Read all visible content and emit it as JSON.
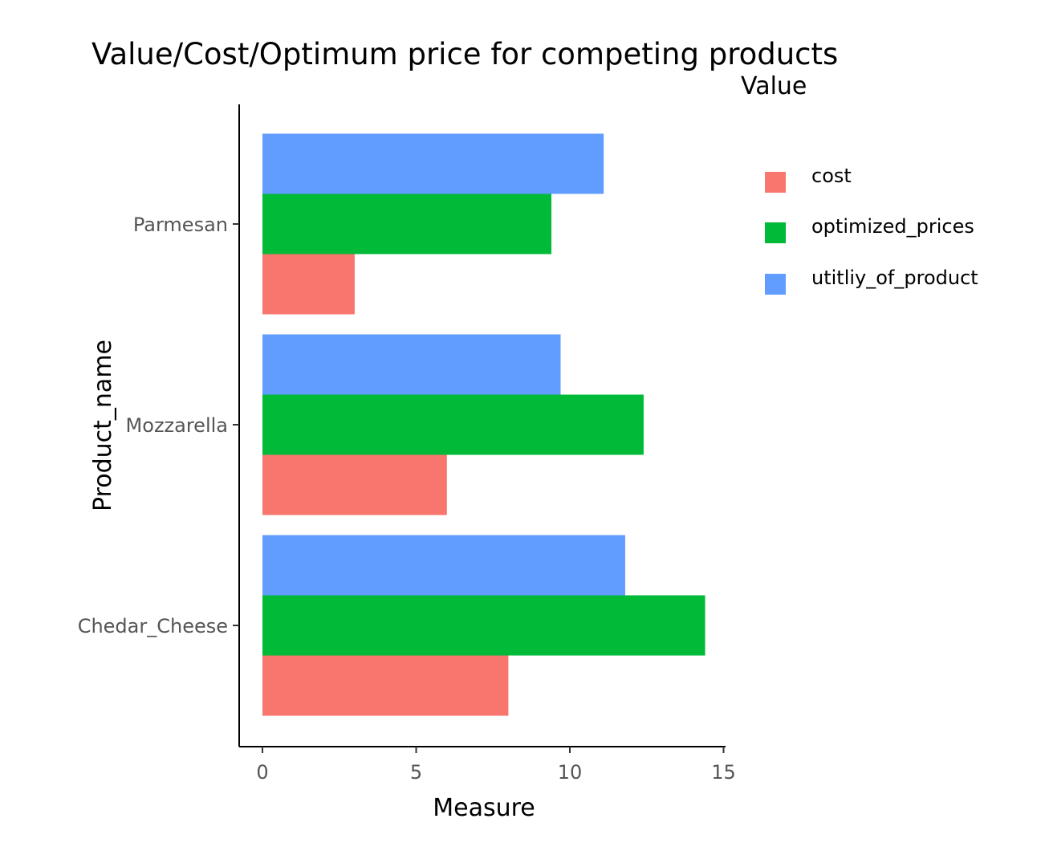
{
  "chart_data": {
    "type": "bar",
    "orientation": "horizontal",
    "title": "Value/Cost/Optimum price for competing products",
    "xlabel": "Measure",
    "ylabel": "Product_name",
    "xlim": [
      0,
      15
    ],
    "xticks": [
      0,
      5,
      10,
      15
    ],
    "grid": false,
    "legend_title": "Value",
    "legend_position": "right",
    "categories": [
      "Parmesan",
      "Mozzarella",
      "Chedar_Cheese"
    ],
    "series": [
      {
        "name": "cost",
        "color": "#F8766D",
        "values": [
          3.0,
          6.0,
          8.0
        ]
      },
      {
        "name": "optimized_prices",
        "color": "#00BA38",
        "values": [
          9.4,
          12.4,
          14.4
        ]
      },
      {
        "name": "utitliy_of_product",
        "color": "#619CFF",
        "values": [
          11.1,
          9.7,
          11.8
        ]
      }
    ]
  }
}
